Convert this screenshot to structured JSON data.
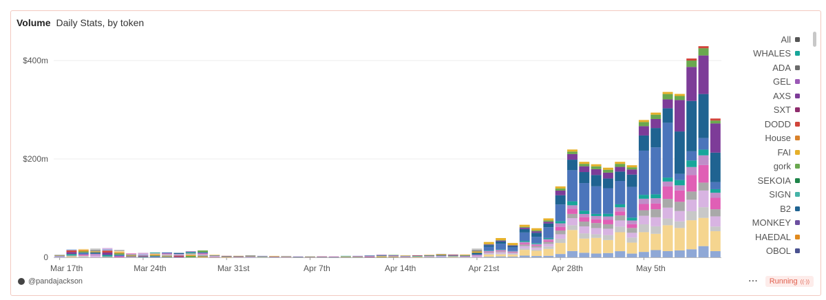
{
  "header": {
    "title": "Volume",
    "subtitle": "Daily Stats, by token"
  },
  "footer": {
    "author": "@pandajackson",
    "more": "···",
    "status": "Running",
    "status_icon": "((·))"
  },
  "chart_data": {
    "type": "bar",
    "stacked": true,
    "y_ticks": [
      {
        "value": 0,
        "label": "0"
      },
      {
        "value": 200,
        "label": "$200m"
      },
      {
        "value": 400,
        "label": "$400m"
      }
    ],
    "ylim": [
      0,
      400
    ],
    "grid": true,
    "legend_position": "right",
    "x_ticks": [
      {
        "index": 0,
        "label": "Mar 17th"
      },
      {
        "index": 7,
        "label": "Mar 24th"
      },
      {
        "index": 14,
        "label": "Mar 31st"
      },
      {
        "index": 21,
        "label": "Apr 7th"
      },
      {
        "index": 28,
        "label": "Apr 14th"
      },
      {
        "index": 35,
        "label": "Apr 21st"
      },
      {
        "index": 42,
        "label": "Apr 28th"
      },
      {
        "index": 49,
        "label": "May 5th"
      }
    ],
    "legend": [
      {
        "name": "All",
        "color": "#555555"
      },
      {
        "name": "WHALES",
        "color": "#17a69a"
      },
      {
        "name": "ADA",
        "color": "#6b6b6b"
      },
      {
        "name": "GEL",
        "color": "#9b59b6"
      },
      {
        "name": "AXS",
        "color": "#7d3c98"
      },
      {
        "name": "SXT",
        "color": "#8e2c6c"
      },
      {
        "name": "DODD",
        "color": "#d1453b"
      },
      {
        "name": "House",
        "color": "#d9822b"
      },
      {
        "name": "FAI",
        "color": "#e6b02a"
      },
      {
        "name": "gork",
        "color": "#6aa84f"
      },
      {
        "name": "SEKOIA",
        "color": "#1e8449"
      },
      {
        "name": "SIGN",
        "color": "#45b3a8"
      },
      {
        "name": "B2",
        "color": "#1f6391"
      },
      {
        "name": "MONKEY",
        "color": "#6c4fa0"
      },
      {
        "name": "HAEDAL",
        "color": "#e08a1e"
      },
      {
        "name": "OBOL",
        "color": "#4a5290"
      }
    ],
    "days": [
      {
        "date": "Mar 17",
        "total": 5
      },
      {
        "date": "Mar 18",
        "total": 16
      },
      {
        "date": "Mar 19",
        "total": 17
      },
      {
        "date": "Mar 20",
        "total": 18
      },
      {
        "date": "Mar 21",
        "total": 19
      },
      {
        "date": "Mar 22",
        "total": 15
      },
      {
        "date": "Mar 23",
        "total": 8
      },
      {
        "date": "Mar 24",
        "total": 9
      },
      {
        "date": "Mar 25",
        "total": 10
      },
      {
        "date": "Mar 26",
        "total": 10
      },
      {
        "date": "Mar 27",
        "total": 9
      },
      {
        "date": "Mar 28",
        "total": 12
      },
      {
        "date": "Mar 29",
        "total": 14
      },
      {
        "date": "Mar 30",
        "total": 5
      },
      {
        "date": "Mar 31",
        "total": 3
      },
      {
        "date": "Apr 1",
        "total": 3
      },
      {
        "date": "Apr 2",
        "total": 4
      },
      {
        "date": "Apr 3",
        "total": 3
      },
      {
        "date": "Apr 4",
        "total": 3
      },
      {
        "date": "Apr 5",
        "total": 3
      },
      {
        "date": "Apr 6",
        "total": 2
      },
      {
        "date": "Apr 7",
        "total": 2
      },
      {
        "date": "Apr 8",
        "total": 2
      },
      {
        "date": "Apr 9",
        "total": 2
      },
      {
        "date": "Apr 10",
        "total": 3
      },
      {
        "date": "Apr 11",
        "total": 3
      },
      {
        "date": "Apr 12",
        "total": 4
      },
      {
        "date": "Apr 13",
        "total": 5
      },
      {
        "date": "Apr 14",
        "total": 5
      },
      {
        "date": "Apr 15",
        "total": 4
      },
      {
        "date": "Apr 16",
        "total": 4
      },
      {
        "date": "Apr 17",
        "total": 5
      },
      {
        "date": "Apr 18",
        "total": 7
      },
      {
        "date": "Apr 19",
        "total": 6
      },
      {
        "date": "Apr 20",
        "total": 6
      },
      {
        "date": "Apr 21",
        "total": 18
      },
      {
        "date": "Apr 22",
        "total": 27
      },
      {
        "date": "Apr 23",
        "total": 35
      },
      {
        "date": "Apr 24",
        "total": 25
      },
      {
        "date": "Apr 25",
        "total": 62
      },
      {
        "date": "Apr 26",
        "total": 55
      },
      {
        "date": "Apr 27",
        "total": 75
      },
      {
        "date": "Apr 28",
        "total": 140
      },
      {
        "date": "Apr 29",
        "total": 215
      },
      {
        "date": "Apr 30",
        "total": 190
      },
      {
        "date": "May 1",
        "total": 185
      },
      {
        "date": "May 2",
        "total": 178
      },
      {
        "date": "May 3",
        "total": 190
      },
      {
        "date": "May 4",
        "total": 183
      },
      {
        "date": "May 5",
        "total": 275
      },
      {
        "date": "May 6",
        "total": 290
      },
      {
        "date": "May 7",
        "total": 332
      },
      {
        "date": "May 8",
        "total": 328
      },
      {
        "date": "May 9",
        "total": 400
      },
      {
        "date": "May 10",
        "total": 425
      },
      {
        "date": "May 11",
        "total": 278
      }
    ],
    "segment_palette": [
      "#8fa8d6",
      "#f5d58f",
      "#c8c8c8",
      "#d8b4e2",
      "#a9a9a9",
      "#e05fb5",
      "#bf8ec9",
      "#17a69a",
      "#4b75bb",
      "#1f6391",
      "#7d3c98",
      "#6aa84f",
      "#e6b02a",
      "#d1453b",
      "#e08a1e",
      "#8a8a8a"
    ]
  }
}
